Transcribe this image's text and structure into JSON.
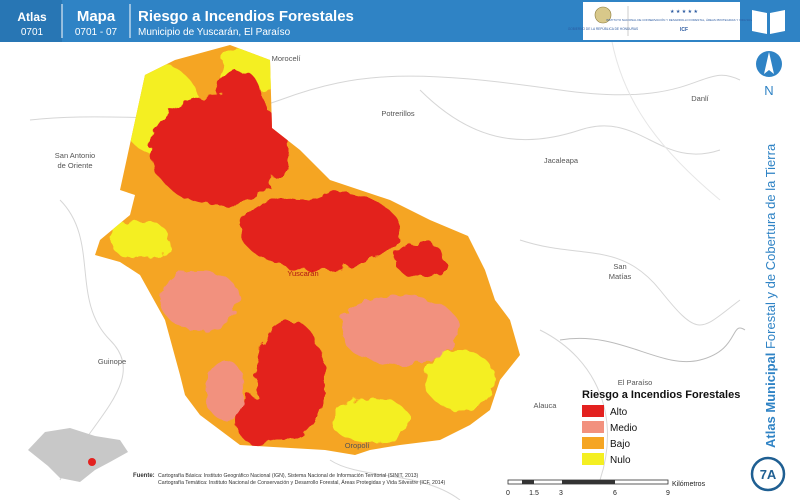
{
  "header": {
    "atlas_label": "Atlas",
    "atlas_code": "0701",
    "map_label": "Mapa",
    "map_code": "0701 - 07",
    "title": "Riesgo a Incendios Forestales",
    "subtitle": "Municipio de Yuscarán, El Paraíso",
    "logos": {
      "government": "GOBIERNO DE LA REPÚBLICA DE HONDURAS",
      "institute": "INSTITUTO NACIONAL DE CONSERVACIÓN Y DESARROLLO FORESTAL, ÁREAS PROTEGIDAS Y VIDA SILVESTRE",
      "acronym": "ICF"
    }
  },
  "sidebar": {
    "north": "N",
    "series_bold": "Atlas Municipal",
    "series_rest": " Forestal y de Cobertura de la Tierra",
    "sheet": "7A"
  },
  "places": [
    "Morocelí",
    "Potrerillos",
    "Danlí",
    "Jacaleapa",
    "San Antonio",
    "de Oriente",
    "San",
    "Matías",
    "Guinope",
    "El Paraíso",
    "Alauca",
    "Oropolí",
    "Yuscarán"
  ],
  "legend": {
    "title": "Riesgo a Incendios Forestales",
    "items": [
      {
        "label": "Alto",
        "color": "#e3211f"
      },
      {
        "label": "Medio",
        "color": "#f2917e"
      },
      {
        "label": "Bajo",
        "color": "#f5a523"
      },
      {
        "label": "Nulo",
        "color": "#f4ef22"
      }
    ]
  },
  "scale": {
    "ticks": [
      "0",
      "1.5",
      "3",
      "6",
      "9"
    ],
    "unit": "Kilómetros"
  },
  "sources": {
    "label": "Fuente:",
    "line1": "Cartografía Básica: Instituto Geográfico Nacional (IGN), Sistema Nacional de Información Territorial (SINIT, 2013)",
    "line2": "Cartografía Temática: Instituto Nacional de Conservación y Desarrollo Forestal, Áreas Protegidas y Vida Silvestre (ICF, 2014)"
  }
}
